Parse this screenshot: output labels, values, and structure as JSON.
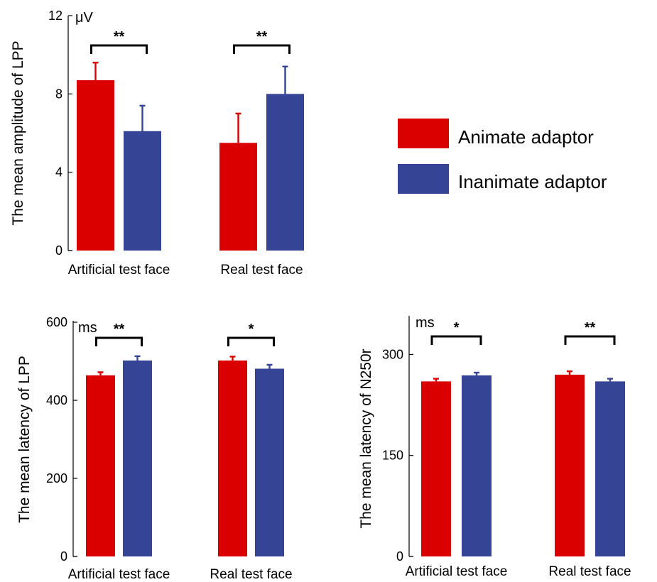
{
  "colors": {
    "animate": "#db0000",
    "inanimate": "#354495"
  },
  "legend": {
    "items": [
      {
        "label": "Animate adaptor",
        "color": "#db0000"
      },
      {
        "label": "Inanimate adaptor",
        "color": "#354495"
      }
    ]
  },
  "chart_data": [
    {
      "type": "bar",
      "ylabel": "The mean amplitude of LPP",
      "unit": "μV",
      "categories": [
        "Artificial test face",
        "Real test face"
      ],
      "ylim": [
        0,
        12
      ],
      "yticks": [
        0,
        4,
        8,
        12
      ],
      "series": [
        {
          "name": "Animate adaptor",
          "values": [
            8.7,
            5.5
          ],
          "errors": [
            0.9,
            1.5
          ]
        },
        {
          "name": "Inanimate adaptor",
          "values": [
            6.1,
            8.0
          ],
          "errors": [
            1.3,
            1.4
          ]
        }
      ],
      "significance": [
        "**",
        "**"
      ]
    },
    {
      "type": "bar",
      "ylabel": "The mean latency of LPP",
      "unit": "ms",
      "categories": [
        "Artificial test face",
        "Real test face"
      ],
      "ylim": [
        0,
        600
      ],
      "yticks": [
        0,
        200,
        400,
        600
      ],
      "series": [
        {
          "name": "Animate adaptor",
          "values": [
            464,
            502
          ],
          "errors": [
            8,
            10
          ]
        },
        {
          "name": "Inanimate adaptor",
          "values": [
            502,
            481
          ],
          "errors": [
            11,
            10
          ]
        }
      ],
      "significance": [
        "**",
        "*"
      ]
    },
    {
      "type": "bar",
      "ylabel": "The mean latency of N250r",
      "unit": "ms",
      "categories": [
        "Artificial test face",
        "Real test face"
      ],
      "ylim": [
        0,
        350
      ],
      "yticks": [
        0,
        150,
        300
      ],
      "series": [
        {
          "name": "Animate adaptor",
          "values": [
            260,
            270
          ],
          "errors": [
            4,
            5
          ]
        },
        {
          "name": "Inanimate adaptor",
          "values": [
            269,
            260
          ],
          "errors": [
            4,
            4
          ]
        }
      ],
      "significance": [
        "*",
        "**"
      ]
    }
  ]
}
